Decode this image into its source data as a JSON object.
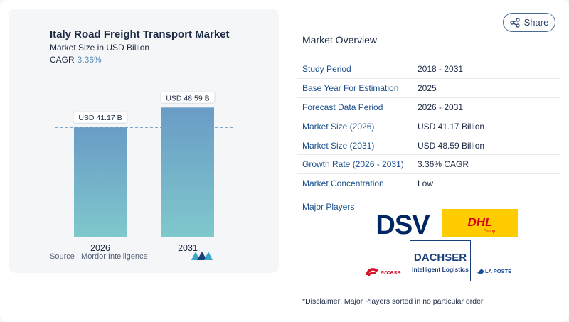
{
  "chart_data": {
    "type": "bar",
    "title": "Italy Road Freight Transport Market",
    "subtitle": "Market Size in USD Billion",
    "cagr_label": "CAGR",
    "cagr_value": "3.36%",
    "categories": [
      "2026",
      "2031"
    ],
    "values": [
      41.17,
      48.59
    ],
    "value_labels": [
      "USD 41.17 B",
      "USD 48.59 B"
    ],
    "bar_gradient": {
      "top": "#6a9cc6",
      "bottom": "#7fc8cc"
    },
    "reference_line": "dashed at first bar value",
    "legend": "none"
  },
  "source": {
    "label": "Source :",
    "name": "Mordor Intelligence"
  },
  "share": {
    "label": "Share",
    "icon": "share-icon"
  },
  "overview": {
    "title": "Market Overview",
    "rows": [
      {
        "label": "Study Period",
        "value": "2018 - 2031"
      },
      {
        "label": "Base Year For Estimation",
        "value": "2025"
      },
      {
        "label": "Forecast Data Period",
        "value": "2026 - 2031"
      },
      {
        "label": "Market Size (2026)",
        "value": "USD 41.17 Billion"
      },
      {
        "label": "Market Size (2031)",
        "value": "USD 48.59 Billion"
      },
      {
        "label": "Growth Rate (2026 - 2031)",
        "value": "3.36% CAGR"
      },
      {
        "label": "Market Concentration",
        "value": "Low"
      }
    ]
  },
  "players": {
    "label": "Major Players",
    "logos": [
      {
        "name": "DSV",
        "text": "DSV"
      },
      {
        "name": "DHL Group",
        "text": "DHL",
        "sub": "Group"
      },
      {
        "name": "Dachser",
        "text": "DACHSER",
        "sub": "Intelligent Logistics"
      },
      {
        "name": "Arcese",
        "text": "arcese"
      },
      {
        "name": "La Poste",
        "text": "LA POSTE"
      }
    ]
  },
  "disclaimer": "*Disclaimer: Major Players sorted in no particular order",
  "colors": {
    "accent": "#1b4f8c",
    "cagr": "#5b8db8",
    "dhl_yellow": "#ffcc00",
    "dhl_red": "#d40511",
    "dsv_blue": "#002664",
    "dachser_blue": "#1a3e7a",
    "arcese_red": "#d3132a"
  }
}
